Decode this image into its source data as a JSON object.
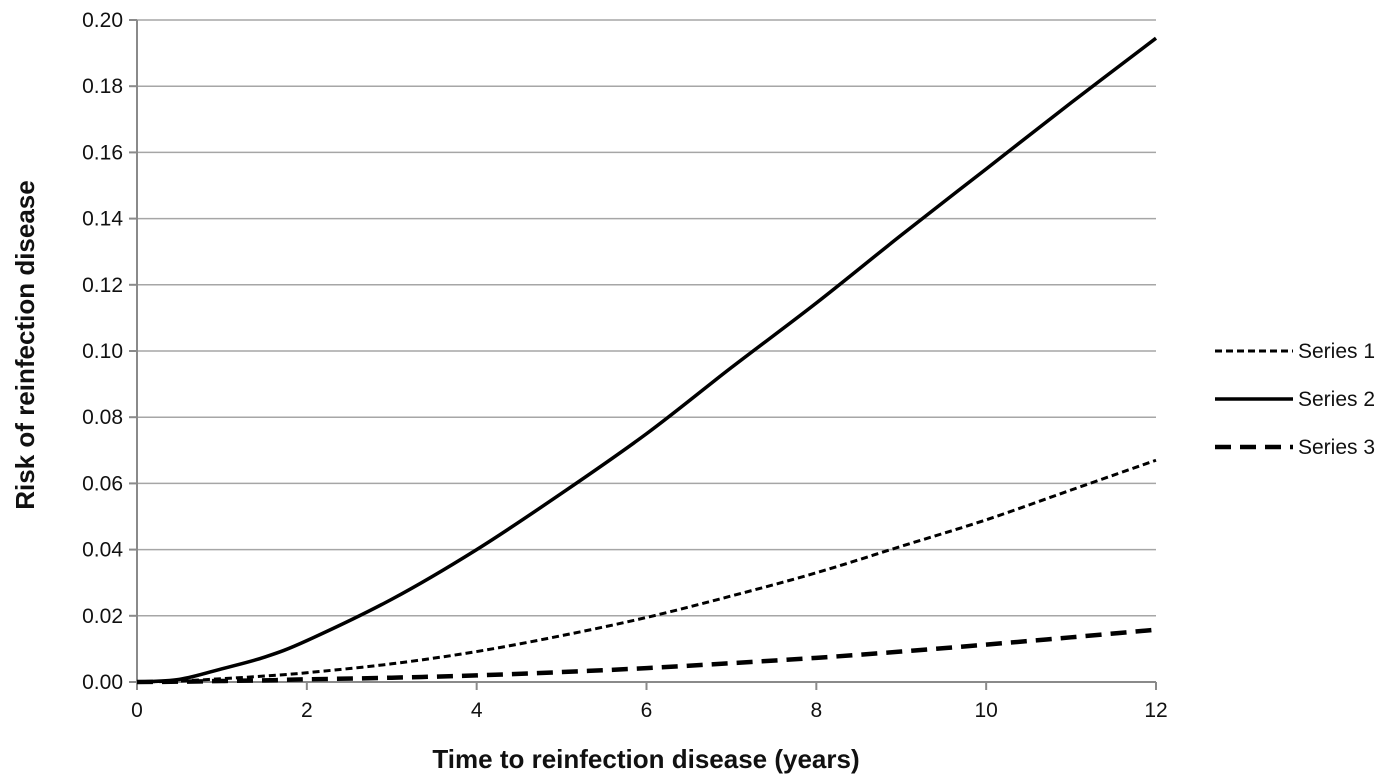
{
  "chart_data": {
    "type": "line",
    "title": "",
    "xlabel": "Time to reinfection disease (years)",
    "ylabel": "Risk of reinfection disease",
    "xlim": [
      0,
      12
    ],
    "ylim": [
      0,
      0.2
    ],
    "x_ticks": [
      "0",
      "2",
      "4",
      "6",
      "8",
      "10",
      "12"
    ],
    "y_ticks": [
      "0.00",
      "0.02",
      "0.04",
      "0.06",
      "0.08",
      "0.10",
      "0.12",
      "0.14",
      "0.16",
      "0.18",
      "0.20"
    ],
    "grid": "horizontal",
    "legend_position": "right",
    "x": [
      0,
      0.5,
      1,
      1.5,
      2,
      3,
      4,
      5,
      6,
      7,
      8,
      9,
      10,
      11,
      12
    ],
    "series": [
      {
        "name": "Series 1",
        "line_style": "dotted",
        "color": "#000000",
        "values": [
          0,
          0.0003,
          0.001,
          0.0018,
          0.0028,
          0.0055,
          0.0092,
          0.014,
          0.0195,
          0.026,
          0.033,
          0.041,
          0.049,
          0.058,
          0.067
        ]
      },
      {
        "name": "Series 2",
        "line_style": "solid",
        "color": "#000000",
        "values": [
          0,
          0.0008,
          0.004,
          0.0075,
          0.0125,
          0.025,
          0.04,
          0.057,
          0.075,
          0.095,
          0.1145,
          0.135,
          0.155,
          0.175,
          0.1945
        ]
      },
      {
        "name": "Series 3",
        "line_style": "dashed",
        "color": "#000000",
        "values": [
          0,
          0.0001,
          0.0003,
          0.0005,
          0.0008,
          0.0013,
          0.002,
          0.003,
          0.0042,
          0.0057,
          0.0073,
          0.0092,
          0.0113,
          0.0135,
          0.0158
        ]
      }
    ]
  }
}
